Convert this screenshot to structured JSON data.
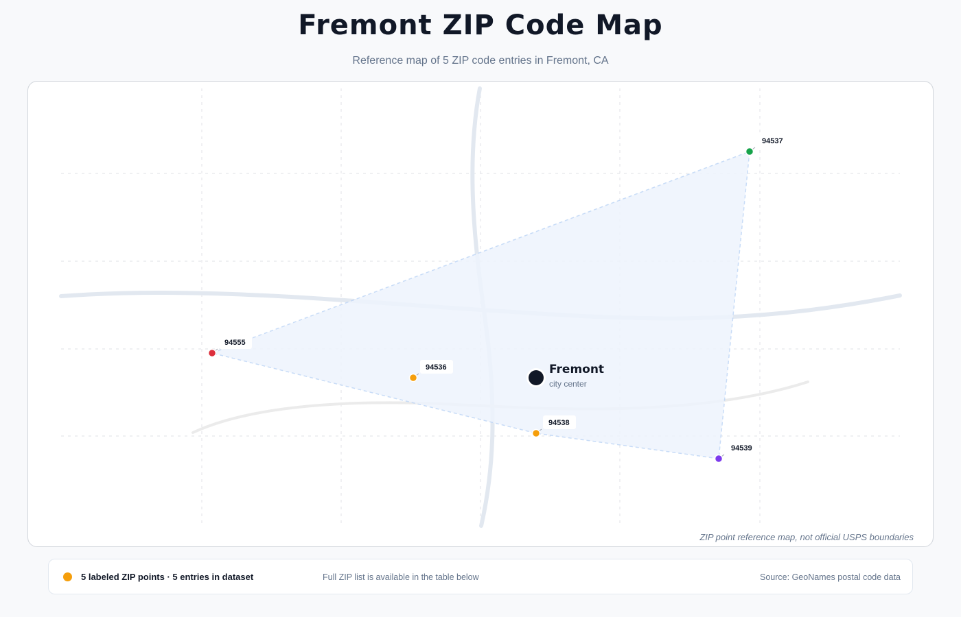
{
  "header": {
    "title": "Fremont ZIP Code Map",
    "subtitle": "Reference map of 5 ZIP code entries in Fremont, CA"
  },
  "map": {
    "city": {
      "name": "Fremont",
      "sub_label": "city center"
    },
    "zip_points": [
      {
        "zip": "94555",
        "color": "#dc2f3c"
      },
      {
        "zip": "94536",
        "color": "#f59e0b"
      },
      {
        "zip": "94538",
        "color": "#f59e0b"
      },
      {
        "zip": "94537",
        "color": "#16a34a"
      },
      {
        "zip": "94539",
        "color": "#7c3aed"
      }
    ],
    "coverage_fill": "#eef4fd",
    "coverage_stroke": "#bfd6f6",
    "note": "ZIP point reference map, not official USPS boundaries"
  },
  "legend": {
    "dot_color": "#f59e0b",
    "count_text": "5 labeled ZIP points · 5 entries in dataset",
    "note": "Full ZIP list is available in the table below",
    "source": "Source: GeoNames postal code data"
  }
}
